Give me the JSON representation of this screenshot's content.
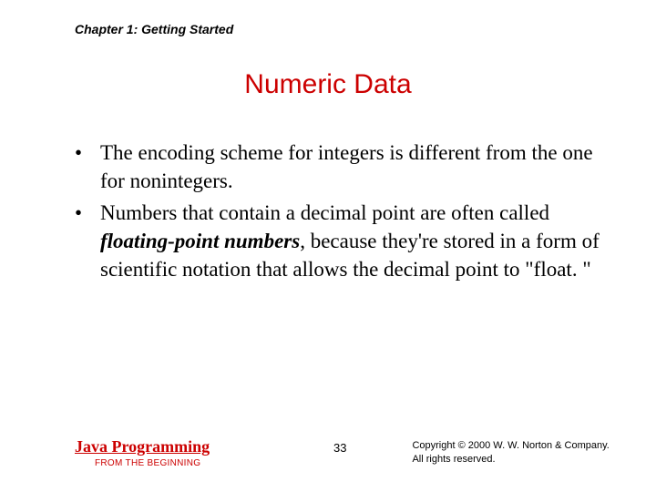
{
  "header": {
    "chapter": "Chapter 1: Getting Started"
  },
  "title": "Numeric Data",
  "bullets": [
    {
      "text": "The encoding scheme for integers is different from the one for nonintegers."
    },
    {
      "prefix": "Numbers that contain a decimal point are often called ",
      "term": "floating-point numbers",
      "suffix": ", because they're stored in a form of scientific notation that allows the decimal point to \"float. \""
    }
  ],
  "footer": {
    "book_title": "Java Programming",
    "book_subtitle": "FROM THE BEGINNING",
    "page_number": "33",
    "copyright_line1": "Copyright © 2000 W. W. Norton & Company.",
    "copyright_line2": "All rights reserved."
  }
}
